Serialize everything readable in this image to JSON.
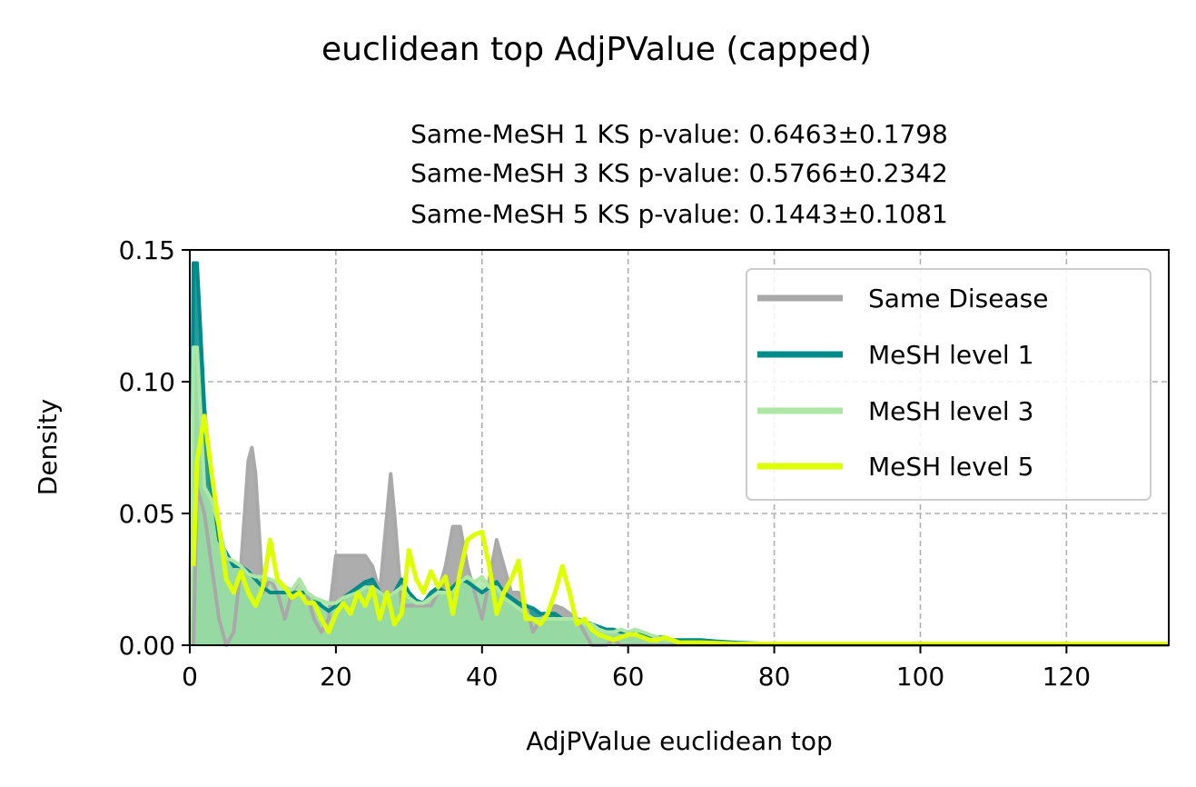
{
  "chart_data": {
    "type": "area",
    "title": "euclidean top AdjPValue (capped)",
    "subtitle_lines": [
      "Same-MeSH 1 KS p-value: 0.6463±0.1798",
      "Same-MeSH 3 KS p-value: 0.5766±0.2342",
      "Same-MeSH 5 KS p-value: 0.1443±0.1081"
    ],
    "xlabel": "AdjPValue euclidean top",
    "ylabel": "Density",
    "xlim": [
      0,
      134
    ],
    "ylim": [
      0,
      0.15
    ],
    "xticks": [
      0,
      20,
      40,
      60,
      80,
      100,
      120
    ],
    "yticks": [
      0.0,
      0.05,
      0.1,
      0.15
    ],
    "xtick_labels": [
      "0",
      "20",
      "40",
      "60",
      "80",
      "100",
      "120"
    ],
    "ytick_labels": [
      "0.00",
      "0.05",
      "0.10",
      "0.15"
    ],
    "grid": true,
    "legend_position": "upper right",
    "series": [
      {
        "name": "Same Disease",
        "color": "#a9a9a9",
        "fill": true,
        "x": [
          0.5,
          1,
          2,
          3,
          4,
          5,
          6,
          7,
          8,
          8.5,
          9,
          10,
          11,
          12,
          13,
          14,
          15,
          16,
          17,
          18,
          19,
          20,
          21,
          22,
          23,
          24,
          25,
          26,
          27,
          27.5,
          28,
          29,
          30,
          31,
          32,
          33,
          34,
          35,
          36,
          37,
          38,
          39,
          40,
          41,
          42,
          43,
          44,
          45,
          46,
          47,
          48,
          49,
          50,
          51,
          52,
          53,
          54,
          55,
          56,
          57,
          58,
          59,
          60,
          61,
          62,
          63,
          64,
          65,
          66,
          67,
          68,
          70,
          75,
          80,
          134
        ],
        "y": [
          0.0,
          0.06,
          0.05,
          0.03,
          0.01,
          0.0,
          0.005,
          0.03,
          0.07,
          0.075,
          0.065,
          0.02,
          0.025,
          0.02,
          0.01,
          0.02,
          0.025,
          0.02,
          0.01,
          0.005,
          0.01,
          0.034,
          0.034,
          0.034,
          0.034,
          0.034,
          0.03,
          0.02,
          0.05,
          0.065,
          0.05,
          0.015,
          0.015,
          0.015,
          0.015,
          0.015,
          0.02,
          0.03,
          0.045,
          0.045,
          0.03,
          0.02,
          0.01,
          0.025,
          0.04,
          0.03,
          0.02,
          0.02,
          0.015,
          0.005,
          0.01,
          0.012,
          0.015,
          0.014,
          0.012,
          0.01,
          0.005,
          0.0,
          0.0,
          0.0,
          0.002,
          0.0,
          0.0,
          0.0,
          0.0,
          0.0,
          0.0,
          0.0,
          0.0,
          0.0,
          0.0,
          0.0,
          0.0,
          0.0,
          0.0
        ]
      },
      {
        "name": "MeSH level 1",
        "color": "#008b8b",
        "fill": true,
        "x": [
          0,
          0.5,
          1,
          2,
          3,
          4,
          5,
          6,
          7,
          8,
          9,
          10,
          11,
          12,
          13,
          14,
          15,
          16,
          17,
          18,
          19,
          20,
          21,
          22,
          23,
          24,
          25,
          26,
          27,
          28,
          29,
          30,
          31,
          32,
          33,
          34,
          35,
          36,
          37,
          38,
          39,
          40,
          41,
          42,
          43,
          44,
          45,
          46,
          47,
          48,
          49,
          50,
          51,
          52,
          53,
          54,
          55,
          56,
          57,
          58,
          59,
          60,
          61,
          62,
          63,
          64,
          65,
          66,
          67,
          68,
          70,
          72,
          75,
          80,
          134
        ],
        "y": [
          0.0,
          0.145,
          0.145,
          0.09,
          0.06,
          0.04,
          0.035,
          0.03,
          0.03,
          0.028,
          0.025,
          0.022,
          0.02,
          0.02,
          0.02,
          0.02,
          0.02,
          0.02,
          0.018,
          0.015,
          0.013,
          0.015,
          0.018,
          0.02,
          0.022,
          0.024,
          0.025,
          0.02,
          0.018,
          0.02,
          0.025,
          0.02,
          0.017,
          0.016,
          0.02,
          0.022,
          0.02,
          0.022,
          0.025,
          0.024,
          0.022,
          0.02,
          0.022,
          0.024,
          0.02,
          0.018,
          0.016,
          0.015,
          0.014,
          0.012,
          0.012,
          0.012,
          0.01,
          0.01,
          0.01,
          0.009,
          0.008,
          0.007,
          0.006,
          0.006,
          0.005,
          0.005,
          0.004,
          0.004,
          0.003,
          0.003,
          0.003,
          0.002,
          0.002,
          0.002,
          0.002,
          0.0015,
          0.001,
          0.0005,
          0.0005
        ]
      },
      {
        "name": "MeSH level 3",
        "color": "#aee6a6",
        "fill": true,
        "x": [
          0,
          0.5,
          1,
          2,
          3,
          4,
          5,
          6,
          7,
          8,
          9,
          10,
          11,
          12,
          13,
          14,
          15,
          16,
          17,
          18,
          19,
          20,
          21,
          22,
          23,
          24,
          25,
          26,
          27,
          28,
          29,
          30,
          31,
          32,
          33,
          34,
          35,
          36,
          37,
          38,
          39,
          40,
          41,
          42,
          43,
          44,
          45,
          46,
          47,
          48,
          49,
          50,
          51,
          52,
          53,
          54,
          55,
          56,
          57,
          58,
          59,
          60,
          61,
          62,
          63,
          64,
          65,
          66,
          67,
          68,
          70,
          75,
          80,
          134
        ],
        "y": [
          0.0,
          0.113,
          0.113,
          0.06,
          0.055,
          0.045,
          0.033,
          0.032,
          0.03,
          0.027,
          0.026,
          0.026,
          0.025,
          0.024,
          0.022,
          0.021,
          0.025,
          0.02,
          0.018,
          0.017,
          0.016,
          0.016,
          0.018,
          0.019,
          0.02,
          0.022,
          0.022,
          0.02,
          0.018,
          0.02,
          0.022,
          0.018,
          0.016,
          0.016,
          0.018,
          0.02,
          0.02,
          0.02,
          0.024,
          0.026,
          0.024,
          0.026,
          0.022,
          0.022,
          0.018,
          0.016,
          0.014,
          0.012,
          0.01,
          0.01,
          0.01,
          0.01,
          0.01,
          0.01,
          0.01,
          0.008,
          0.008,
          0.006,
          0.005,
          0.005,
          0.006,
          0.005,
          0.006,
          0.005,
          0.004,
          0.003,
          0.002,
          0.002,
          0.001,
          0.001,
          0.001,
          0.0005,
          0.0005,
          0.0005
        ]
      },
      {
        "name": "MeSH level 5",
        "color": "#ddff00",
        "fill": false,
        "x": [
          0.5,
          1,
          2,
          3,
          4,
          5,
          6,
          7,
          8,
          9,
          10,
          11,
          12,
          13,
          14,
          15,
          16,
          17,
          18,
          19,
          20,
          21,
          22,
          23,
          24,
          25,
          26,
          27,
          28,
          29,
          30,
          31,
          32,
          33,
          34,
          35,
          36,
          37,
          38,
          39,
          40,
          41,
          42,
          43,
          44,
          45,
          46,
          47,
          48,
          49,
          50,
          51,
          52,
          53,
          54,
          55,
          56,
          57,
          58,
          59,
          60,
          61,
          62,
          63,
          64,
          65,
          66,
          67,
          68,
          70,
          75,
          80,
          134
        ],
        "y": [
          0.03,
          0.07,
          0.087,
          0.065,
          0.045,
          0.025,
          0.02,
          0.028,
          0.02,
          0.015,
          0.022,
          0.04,
          0.025,
          0.022,
          0.018,
          0.02,
          0.016,
          0.016,
          0.01,
          0.005,
          0.012,
          0.016,
          0.012,
          0.02,
          0.015,
          0.022,
          0.01,
          0.02,
          0.008,
          0.012,
          0.036,
          0.025,
          0.02,
          0.028,
          0.022,
          0.026,
          0.012,
          0.028,
          0.04,
          0.042,
          0.043,
          0.03,
          0.012,
          0.02,
          0.025,
          0.032,
          0.01,
          0.01,
          0.008,
          0.012,
          0.02,
          0.03,
          0.02,
          0.008,
          0.01,
          0.006,
          0.004,
          0.003,
          0.002,
          0.003,
          0.004,
          0.004,
          0.003,
          0.002,
          0.002,
          0.003,
          0.002,
          0.001,
          0.001,
          0.001,
          0.0005,
          0.0005,
          0.0005
        ]
      }
    ]
  }
}
